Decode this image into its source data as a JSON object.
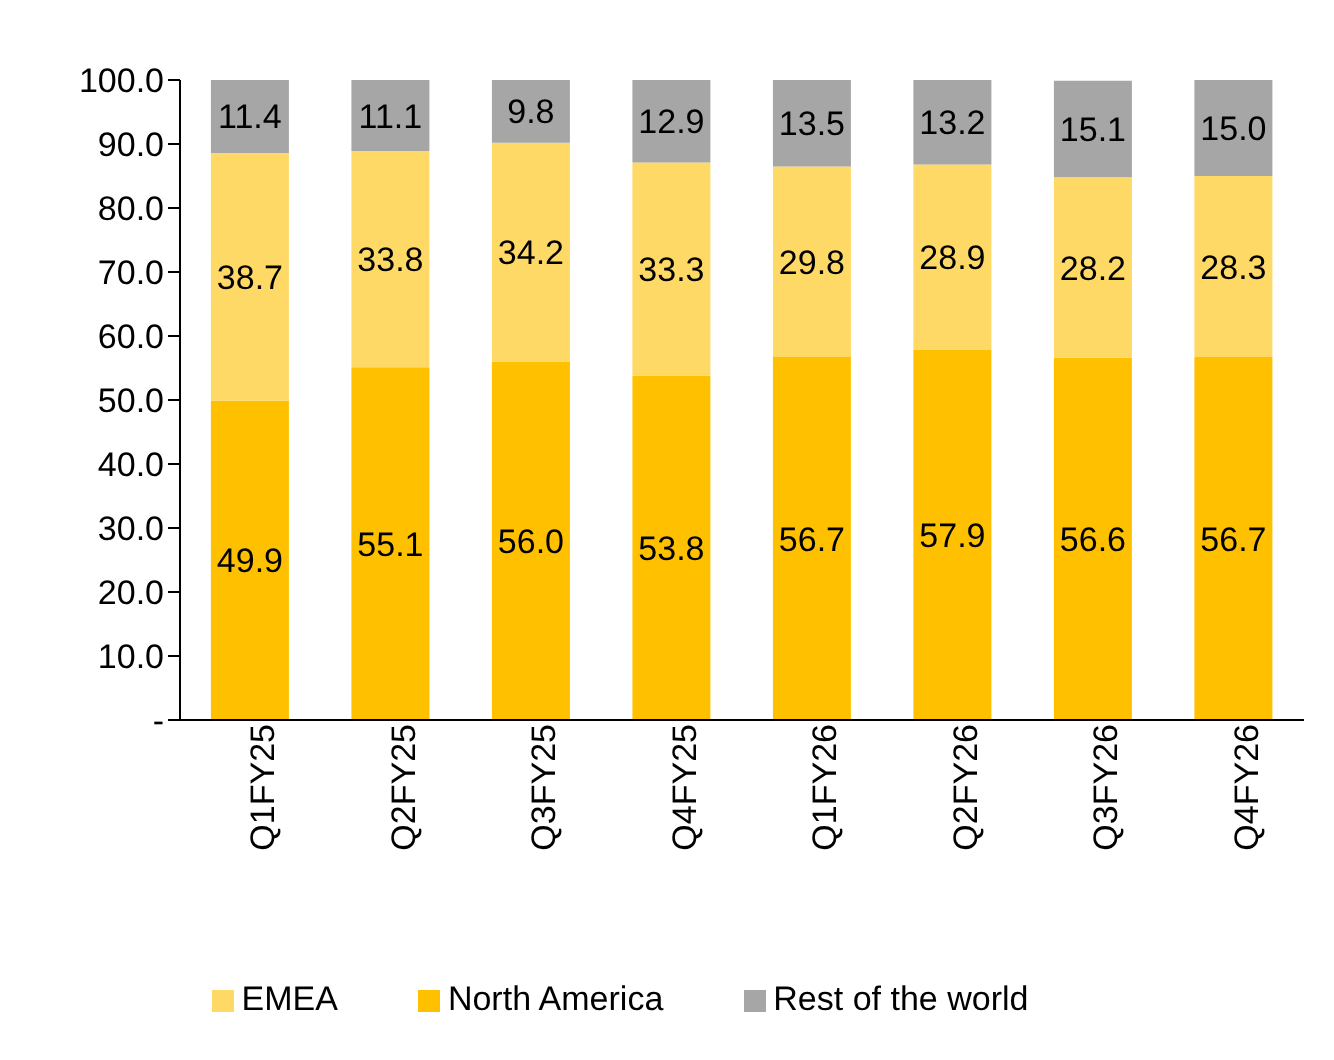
{
  "chart_data": {
    "type": "bar",
    "stacked": true,
    "categories": [
      "Q1FY25",
      "Q2FY25",
      "Q3FY25",
      "Q4FY25",
      "Q1FY26",
      "Q2FY26",
      "Q3FY26",
      "Q4FY26"
    ],
    "series": [
      {
        "name": "North America",
        "color": "#ffc000",
        "values": [
          49.9,
          55.1,
          56.0,
          53.8,
          56.7,
          57.9,
          56.6,
          56.7
        ],
        "value_labels": [
          "49.9",
          "55.1",
          "56.0",
          "53.8",
          "56.7",
          "57.9",
          "56.6",
          "56.7"
        ]
      },
      {
        "name": "EMEA",
        "color": "#ffd966",
        "values": [
          38.7,
          33.8,
          34.2,
          33.3,
          29.8,
          28.9,
          28.2,
          28.3
        ],
        "value_labels": [
          "38.7",
          "33.8",
          "34.2",
          "33.3",
          "29.8",
          "28.9",
          "28.2",
          "28.3"
        ]
      },
      {
        "name": "Rest of the world",
        "color": "#a6a6a6",
        "values": [
          11.4,
          11.1,
          9.8,
          12.9,
          13.5,
          13.2,
          15.1,
          15.0
        ],
        "value_labels": [
          "11.4",
          "11.1",
          "9.8",
          "12.9",
          "13.5",
          "13.2",
          "15.1",
          "15.0"
        ]
      }
    ],
    "ylim": [
      0,
      100
    ],
    "yticks": [
      {
        "value": 0,
        "label": "-"
      },
      {
        "value": 10,
        "label": "10.0"
      },
      {
        "value": 20,
        "label": "20.0"
      },
      {
        "value": 30,
        "label": "30.0"
      },
      {
        "value": 40,
        "label": "40.0"
      },
      {
        "value": 50,
        "label": "50.0"
      },
      {
        "value": 60,
        "label": "60.0"
      },
      {
        "value": 70,
        "label": "70.0"
      },
      {
        "value": 80,
        "label": "80.0"
      },
      {
        "value": 90,
        "label": "90.0"
      },
      {
        "value": 100,
        "label": "100.0"
      }
    ],
    "grid": false,
    "legend": "bottom"
  }
}
